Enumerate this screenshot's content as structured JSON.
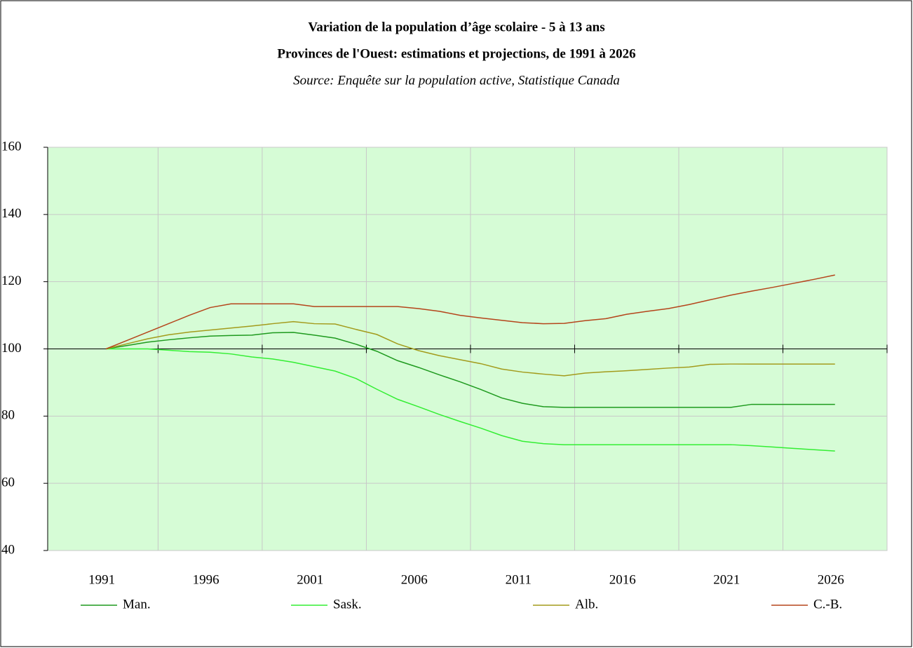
{
  "chart_data": {
    "type": "line",
    "title": "Variation de la population d’âge scolaire - 5 à 13 ans",
    "subtitle": "Provinces de l'Ouest: estimations et projections, de 1991 à 2026",
    "source": "Source: Enquête sur la population active, Statistique Canada",
    "x": [
      1991,
      1992,
      1993,
      1994,
      1995,
      1996,
      1997,
      1998,
      1999,
      2000,
      2001,
      2002,
      2003,
      2004,
      2005,
      2006,
      2007,
      2008,
      2009,
      2010,
      2011,
      2012,
      2013,
      2014,
      2015,
      2016,
      2017,
      2018,
      2019,
      2020,
      2021,
      2022,
      2023,
      2024,
      2025,
      2026
    ],
    "xlim": [
      1988.2,
      2028.5
    ],
    "xticks": [
      1991,
      1996,
      2001,
      2006,
      2011,
      2016,
      2021,
      2026
    ],
    "ylim": [
      40,
      160
    ],
    "yticks": [
      40,
      60,
      80,
      100,
      120,
      140,
      160
    ],
    "grid": true,
    "legend": "bottom",
    "series": [
      {
        "name": "Man.",
        "color": "#1e9a1e",
        "values": [
          100,
          101,
          102,
          102.7,
          103.3,
          103.8,
          104,
          104.1,
          104.8,
          104.9,
          104.1,
          103.2,
          101.4,
          99.3,
          96.5,
          94.5,
          92.3,
          90.2,
          87.9,
          85.4,
          83.8,
          82.8,
          82.6,
          82.6,
          82.6,
          82.6,
          82.6,
          82.6,
          82.6,
          82.6,
          82.6,
          83.5,
          83.5,
          83.5,
          83.5,
          83.5
        ]
      },
      {
        "name": "Sask.",
        "color": "#33ee33",
        "values": [
          100,
          100,
          100,
          99.6,
          99.2,
          99,
          98.5,
          97.6,
          97,
          96,
          94.7,
          93.4,
          91.2,
          88,
          85,
          82.8,
          80.5,
          78.4,
          76.4,
          74.2,
          72.5,
          71.8,
          71.5,
          71.5,
          71.5,
          71.5,
          71.5,
          71.5,
          71.5,
          71.5,
          71.5,
          71.2,
          70.8,
          70.4,
          70,
          69.6
        ]
      },
      {
        "name": "Alb.",
        "color": "#a39b1c",
        "values": [
          100,
          101.5,
          103,
          104.2,
          105,
          105.6,
          106.2,
          106.8,
          107.5,
          108.1,
          107.5,
          107.4,
          105.8,
          104.3,
          101.5,
          99.5,
          98,
          96.8,
          95.6,
          94,
          93.1,
          92.5,
          92,
          92.8,
          93.2,
          93.5,
          93.9,
          94.3,
          94.6,
          95.4,
          95.5,
          95.5,
          95.5,
          95.5,
          95.5,
          95.5
        ]
      },
      {
        "name": "C.-B.",
        "color": "#b5451b",
        "values": [
          100,
          102.5,
          105,
          107.5,
          110,
          112.3,
          113.4,
          113.4,
          113.4,
          113.4,
          112.6,
          112.6,
          112.6,
          112.6,
          112.6,
          112,
          111.2,
          110,
          109.2,
          108.5,
          107.8,
          107.5,
          107.6,
          108.4,
          109,
          110.3,
          111.2,
          112,
          113.2,
          114.6,
          116,
          117.2,
          118.3,
          119.5,
          120.7,
          122
        ]
      }
    ]
  }
}
